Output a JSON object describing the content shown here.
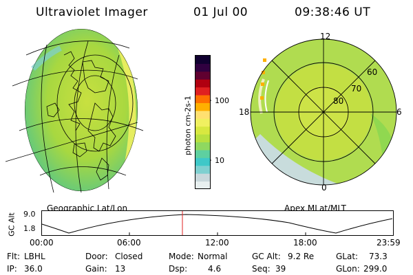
{
  "header": {
    "instrument": "Ultraviolet Imager",
    "date": "01 Jul 00",
    "time": "09:38:46 UT"
  },
  "colorbar": {
    "label": "photon cm-2s-1",
    "ticks": [
      "100",
      "10"
    ],
    "colors": [
      "#e8f0f0",
      "#c9d8dc",
      "#7fd0d0",
      "#3fc8c8",
      "#5ed0a0",
      "#8fd860",
      "#b8e040",
      "#d8e840",
      "#f0f060",
      "#ffe070",
      "#ffb000",
      "#ff7000",
      "#e02020",
      "#b00010",
      "#600030",
      "#300040",
      "#100030"
    ]
  },
  "panels": {
    "left_caption": "Geographic Lat/Lon",
    "right_caption": "Apex MLat/MLT"
  },
  "polar": {
    "mlt_labels": {
      "top": "12",
      "left": "18",
      "right": "6",
      "bottom": "0"
    },
    "lat_labels": [
      "60",
      "70",
      "80"
    ]
  },
  "timeline": {
    "ylabel": "GC Alt",
    "yticks": [
      "9.0",
      "1.8"
    ],
    "xticks": [
      "00:00",
      "06:00",
      "12:00",
      "18:00",
      "23:59"
    ],
    "marker_time": "09:38:46"
  },
  "info": {
    "row1": {
      "flt_label": "Flt:",
      "flt_value": "LBHL",
      "door_label": "Door:",
      "door_value": "Closed",
      "mode_label": "Mode:",
      "mode_value": "Normal",
      "gcalt_label": "GC Alt:",
      "gcalt_value": "9.2 Re",
      "glat_label": "GLat:",
      "glat_value": "73.3"
    },
    "row2": {
      "ip_label": "IP:",
      "ip_value": "36.0",
      "gain_label": "Gain:",
      "gain_value": "13",
      "dsp_label": "Dsp:",
      "dsp_value": "4.6",
      "seq_label": "Seq:",
      "seq_value": "39",
      "glon_label": "GLon:",
      "glon_value": "299.0"
    }
  }
}
